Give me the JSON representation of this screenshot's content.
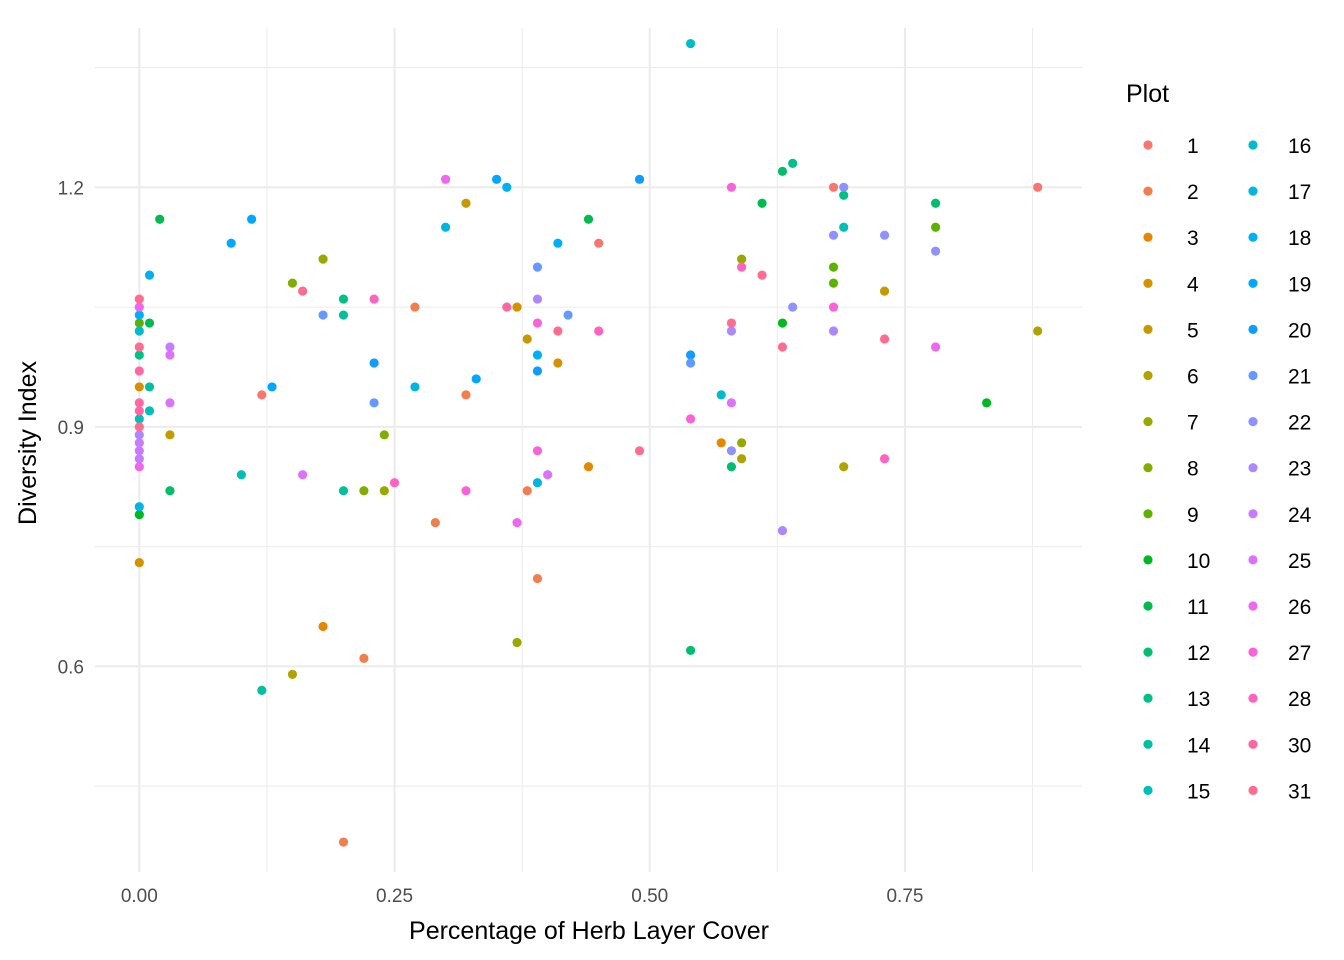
{
  "chart_data": {
    "type": "scatter",
    "xlabel": "Percentage of Herb Layer Cover",
    "ylabel": "Diversity Index",
    "xlim": [
      -0.0434,
      0.9234
    ],
    "ylim": [
      0.3425,
      1.3995
    ],
    "x_ticks": [
      0,
      0.25,
      0.5,
      0.75
    ],
    "x_tick_labels": [
      "0.00",
      "0.25",
      "0.50",
      "0.75"
    ],
    "y_ticks": [
      0.6,
      0.9,
      1.2
    ],
    "y_tick_labels": [
      "0.6",
      "0.9",
      "1.2"
    ],
    "grid": true,
    "legend": {
      "title": "Plot",
      "placement": "right",
      "columns": 2
    },
    "series": [
      {
        "name": "1",
        "color": "#F8766D",
        "points": [
          [
            0.68,
            1.2
          ],
          [
            0.88,
            1.2
          ],
          [
            0.45,
            1.13
          ],
          [
            0.12,
            0.94
          ]
        ]
      },
      {
        "name": "2",
        "color": "#F07E4F",
        "points": [
          [
            0.27,
            1.05
          ],
          [
            0.32,
            0.94
          ],
          [
            0.29,
            0.78
          ],
          [
            0.38,
            0.82
          ],
          [
            0.39,
            0.71
          ],
          [
            0.22,
            0.61
          ],
          [
            0.2,
            0.38
          ]
        ]
      },
      {
        "name": "3",
        "color": "#E58700",
        "points": [
          [
            0.57,
            0.88
          ],
          [
            0.44,
            0.85
          ],
          [
            0.18,
            0.65
          ]
        ]
      },
      {
        "name": "4",
        "color": "#D69100",
        "points": [
          [
            0.37,
            1.05
          ],
          [
            0.41,
            0.98
          ],
          [
            0.0,
            0.95
          ],
          [
            0.0,
            0.73
          ]
        ]
      },
      {
        "name": "5",
        "color": "#C49A00",
        "points": [
          [
            0.32,
            1.18
          ],
          [
            0.38,
            1.01
          ],
          [
            0.03,
            0.89
          ],
          [
            0.73,
            1.07
          ]
        ]
      },
      {
        "name": "6",
        "color": "#B0A300",
        "points": [
          [
            0.88,
            1.02
          ],
          [
            0.69,
            0.85
          ],
          [
            0.59,
            0.86
          ],
          [
            0.15,
            0.59
          ]
        ]
      },
      {
        "name": "7",
        "color": "#99A800",
        "points": [
          [
            0.18,
            1.11
          ],
          [
            0.59,
            1.11
          ],
          [
            0.24,
            0.82
          ],
          [
            0.59,
            0.88
          ],
          [
            0.37,
            0.63
          ]
        ]
      },
      {
        "name": "8",
        "color": "#7FAE00",
        "points": [
          [
            0.15,
            1.08
          ],
          [
            0.24,
            0.89
          ],
          [
            0.22,
            0.82
          ]
        ]
      },
      {
        "name": "9",
        "color": "#5BB300",
        "points": [
          [
            0.68,
            1.1
          ],
          [
            0.68,
            1.08
          ],
          [
            0.78,
            1.15
          ],
          [
            0.0,
            1.03
          ]
        ]
      },
      {
        "name": "10",
        "color": "#00B81F",
        "points": [
          [
            0.83,
            0.93
          ],
          [
            0.63,
            1.03
          ],
          [
            0.0,
            0.79
          ]
        ]
      },
      {
        "name": "11",
        "color": "#00BB4E",
        "points": [
          [
            0.61,
            1.18
          ],
          [
            0.02,
            1.16
          ],
          [
            0.01,
            1.03
          ],
          [
            0.44,
            1.16
          ]
        ]
      },
      {
        "name": "12",
        "color": "#00BE6C",
        "points": [
          [
            0.63,
            1.22
          ],
          [
            0.78,
            1.18
          ],
          [
            0.54,
            0.62
          ],
          [
            0.58,
            0.85
          ],
          [
            0.03,
            0.82
          ]
        ]
      },
      {
        "name": "13",
        "color": "#00C087",
        "points": [
          [
            0.64,
            1.23
          ],
          [
            0.69,
            1.19
          ],
          [
            0.0,
            0.99
          ],
          [
            0.2,
            1.06
          ]
        ]
      },
      {
        "name": "14",
        "color": "#00C0A0",
        "points": [
          [
            0.2,
            1.04
          ],
          [
            0.2,
            0.82
          ],
          [
            0.12,
            0.57
          ],
          [
            0.01,
            0.95
          ]
        ]
      },
      {
        "name": "15",
        "color": "#00BFB7",
        "points": [
          [
            0.69,
            1.15
          ],
          [
            0.1,
            0.84
          ],
          [
            0.0,
            0.91
          ],
          [
            0.01,
            0.92
          ]
        ]
      },
      {
        "name": "16",
        "color": "#00BBCD",
        "points": [
          [
            0.54,
            1.38
          ],
          [
            0.57,
            0.94
          ],
          [
            0.0,
            1.02
          ]
        ]
      },
      {
        "name": "17",
        "color": "#00B6E1",
        "points": [
          [
            0.3,
            1.15
          ],
          [
            0.27,
            0.95
          ],
          [
            0.0,
            0.8
          ],
          [
            0.39,
            0.83
          ]
        ]
      },
      {
        "name": "18",
        "color": "#00B0F6",
        "points": [
          [
            0.36,
            1.2
          ],
          [
            0.41,
            1.13
          ],
          [
            0.39,
            0.99
          ],
          [
            0.01,
            1.09
          ],
          [
            0.0,
            1.04
          ]
        ]
      },
      {
        "name": "19",
        "color": "#00A7FF",
        "points": [
          [
            0.35,
            1.21
          ],
          [
            0.11,
            1.16
          ],
          [
            0.09,
            1.13
          ],
          [
            0.33,
            0.96
          ],
          [
            0.13,
            0.95
          ]
        ]
      },
      {
        "name": "20",
        "color": "#109BFF",
        "points": [
          [
            0.49,
            1.21
          ],
          [
            0.54,
            0.99
          ],
          [
            0.23,
            0.98
          ],
          [
            0.39,
            0.97
          ]
        ]
      },
      {
        "name": "21",
        "color": "#6699FF",
        "points": [
          [
            0.39,
            1.1
          ],
          [
            0.42,
            1.04
          ],
          [
            0.18,
            1.04
          ],
          [
            0.54,
            0.98
          ],
          [
            0.23,
            0.93
          ]
        ]
      },
      {
        "name": "22",
        "color": "#8F91FF",
        "points": [
          [
            0.69,
            1.2
          ],
          [
            0.68,
            1.14
          ],
          [
            0.73,
            1.14
          ],
          [
            0.64,
            1.05
          ],
          [
            0.78,
            1.12
          ],
          [
            0.58,
            0.87
          ]
        ]
      },
      {
        "name": "23",
        "color": "#AC88FF",
        "points": [
          [
            0.68,
            1.02
          ],
          [
            0.58,
            1.02
          ],
          [
            0.63,
            0.77
          ],
          [
            0.0,
            0.89
          ],
          [
            0.39,
            1.06
          ]
        ]
      },
      {
        "name": "24",
        "color": "#C77CFF",
        "points": [
          [
            0.03,
            1.0
          ],
          [
            0.0,
            0.87
          ],
          [
            0.0,
            0.86
          ],
          [
            0.0,
            0.88
          ]
        ]
      },
      {
        "name": "25",
        "color": "#DC71FA",
        "points": [
          [
            0.03,
            0.99
          ],
          [
            0.03,
            0.93
          ],
          [
            0.16,
            0.84
          ],
          [
            0.4,
            0.84
          ],
          [
            0.58,
            0.93
          ]
        ]
      },
      {
        "name": "26",
        "color": "#EE67EC",
        "points": [
          [
            0.3,
            1.21
          ],
          [
            0.37,
            0.78
          ],
          [
            0.0,
            1.05
          ],
          [
            0.0,
            0.85
          ],
          [
            0.78,
            1.0
          ]
        ]
      },
      {
        "name": "27",
        "color": "#FA62D7",
        "points": [
          [
            0.58,
            1.2
          ],
          [
            0.54,
            0.91
          ],
          [
            0.39,
            1.03
          ],
          [
            0.68,
            1.05
          ],
          [
            0.39,
            0.87
          ],
          [
            0.32,
            0.82
          ]
        ]
      },
      {
        "name": "28",
        "color": "#FF62BF",
        "points": [
          [
            0.59,
            1.1
          ],
          [
            0.45,
            1.02
          ],
          [
            0.25,
            0.83
          ],
          [
            0.23,
            1.06
          ],
          [
            0.73,
            0.86
          ]
        ]
      },
      {
        "name": "30",
        "color": "#FF67A4",
        "points": [
          [
            0.36,
            1.05
          ],
          [
            0.0,
            0.97
          ],
          [
            0.0,
            0.92
          ],
          [
            0.0,
            0.93
          ]
        ]
      },
      {
        "name": "31",
        "color": "#FF6C8F",
        "points": [
          [
            0.58,
            1.03
          ],
          [
            0.63,
            1.0
          ],
          [
            0.61,
            1.09
          ],
          [
            0.16,
            1.07
          ],
          [
            0.0,
            1.06
          ],
          [
            0.0,
            1.0
          ],
          [
            0.0,
            0.9
          ],
          [
            0.41,
            1.02
          ],
          [
            0.49,
            0.87
          ],
          [
            0.73,
            1.01
          ]
        ]
      }
    ]
  }
}
